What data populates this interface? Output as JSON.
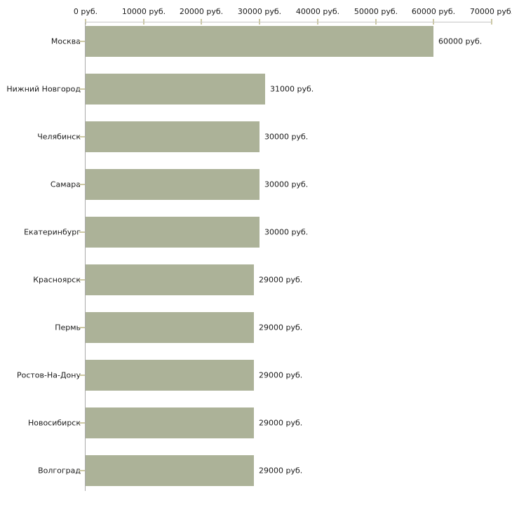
{
  "chart_data": {
    "type": "bar",
    "orientation": "horizontal",
    "title": "",
    "categories": [
      "Москва",
      "Нижний Новгород",
      "Челябинск",
      "Самара",
      "Екатеринбург",
      "Красноярск",
      "Пермь",
      "Ростов-На-Дону",
      "Новосибирск",
      "Волгоград"
    ],
    "values": [
      60000,
      31000,
      30000,
      30000,
      30000,
      29000,
      29000,
      29000,
      29000,
      29000
    ],
    "value_labels": [
      "60000 руб.",
      "31000 руб.",
      "30000 руб.",
      "30000 руб.",
      "30000 руб.",
      "29000 руб.",
      "29000 руб.",
      "29000 руб.",
      "29000 руб.",
      "29000 руб."
    ],
    "x_ticks": [
      0,
      10000,
      20000,
      30000,
      40000,
      50000,
      60000,
      70000
    ],
    "x_tick_labels": [
      "0 руб.",
      "10000 руб.",
      "20000 руб.",
      "30000 руб.",
      "40000 руб.",
      "50000 руб.",
      "60000 руб.",
      "70000 руб."
    ],
    "xlim": [
      0,
      70000
    ],
    "grid": false,
    "legend": "none",
    "colors": {
      "bar_fill": "#acb298",
      "x_axis_line": "#c6c6c6",
      "y_axis_line": "#ababab",
      "tick_mark": "#cdc9a3",
      "text": "#1a1a1a",
      "background": "#ffffff"
    }
  }
}
